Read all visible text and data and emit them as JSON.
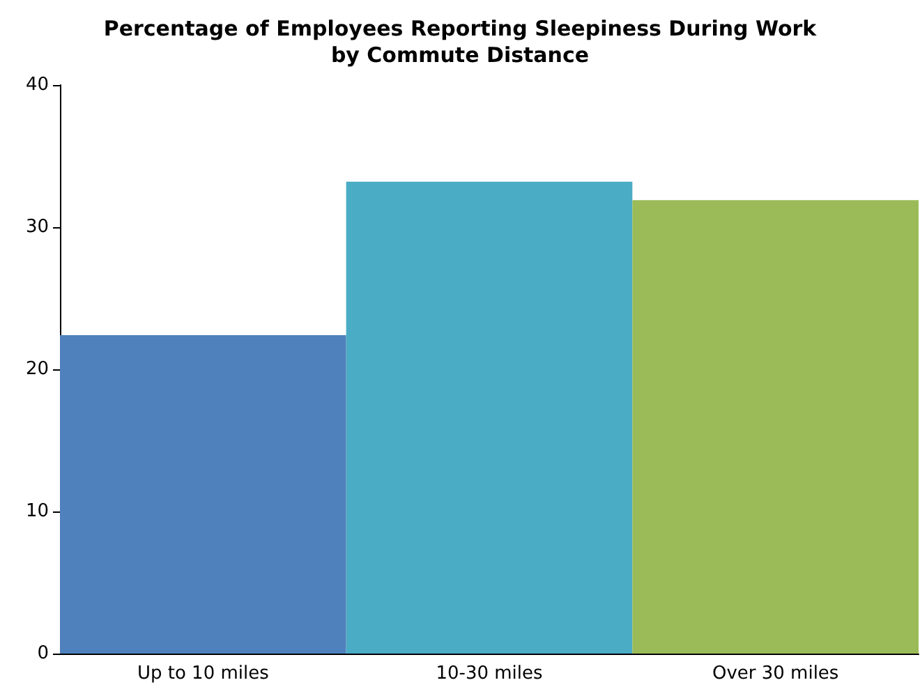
{
  "chart_data": {
    "type": "bar",
    "title": "Percentage of Employees Reporting Sleepiness During Work\nby Commute Distance",
    "categories": [
      "Up to 10 miles",
      "10-30 miles",
      "Over 30 miles"
    ],
    "values": [
      22.4,
      33.2,
      31.9
    ],
    "colors": [
      "#4f81bd",
      "#4bacc6",
      "#9bbb59"
    ],
    "ylim": [
      0,
      40
    ],
    "yticks": [
      0,
      10,
      20,
      30,
      40
    ],
    "grid": false
  }
}
